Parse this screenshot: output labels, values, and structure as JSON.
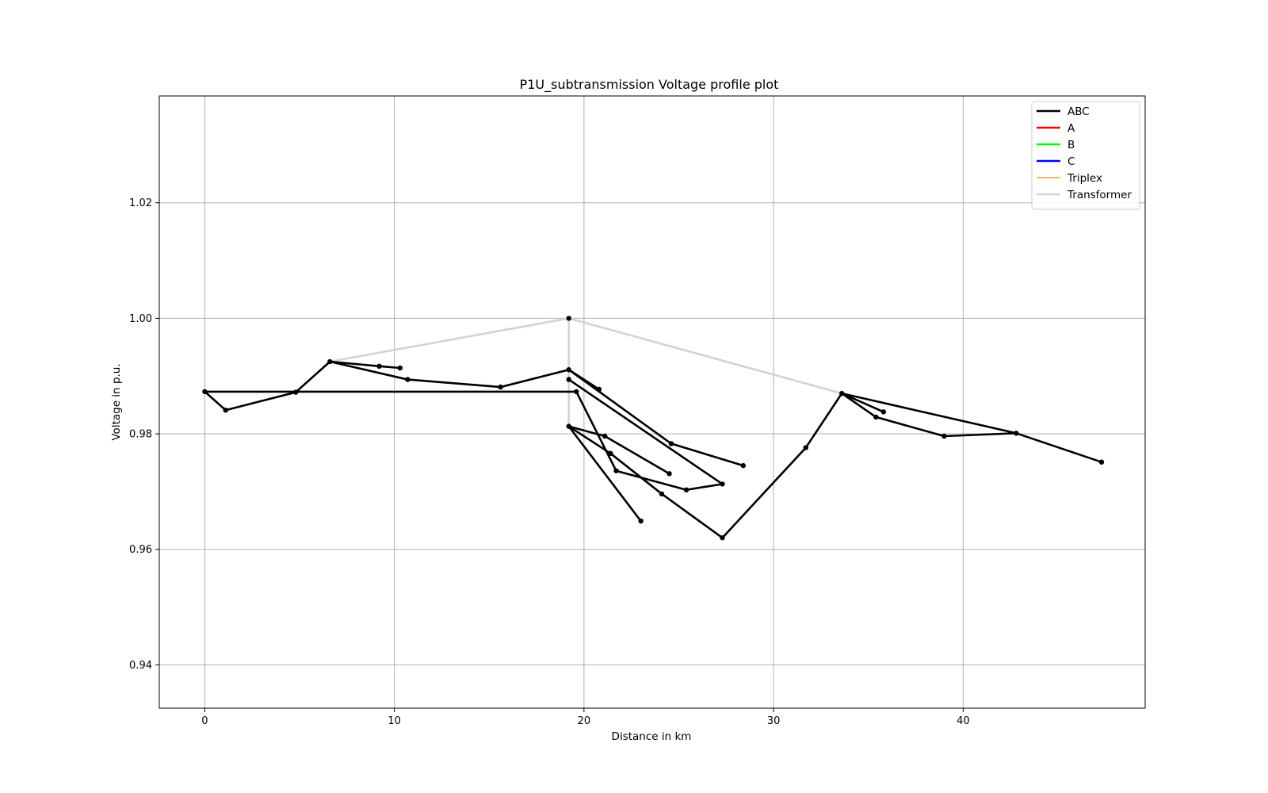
{
  "chart_data": {
    "type": "line",
    "title": "P1U_subtransmission Voltage profile plot",
    "xlabel": "Distance in km",
    "ylabel": "Voltage in p.u.",
    "xlim": [
      -2.4,
      49.6
    ],
    "ylim": [
      0.9325,
      1.0385
    ],
    "xticks": [
      0,
      10,
      20,
      30,
      40
    ],
    "xtick_labels": [
      "0",
      "10",
      "20",
      "30",
      "40"
    ],
    "yticks": [
      0.94,
      0.96,
      0.98,
      1.0,
      1.02
    ],
    "ytick_labels": [
      "0.94",
      "0.96",
      "0.98",
      "1.00",
      "1.02"
    ],
    "grid": true,
    "legend_position": "top-right",
    "legend": [
      {
        "label": "ABC",
        "color": "#000000",
        "width": 2.6
      },
      {
        "label": "A",
        "color": "#ff0000",
        "width": 2.6
      },
      {
        "label": "B",
        "color": "#00ff00",
        "width": 2.6
      },
      {
        "label": "C",
        "color": "#0000ff",
        "width": 2.6
      },
      {
        "label": "Triplex",
        "color": "#f0a030",
        "width": 1.4
      },
      {
        "label": "Transformer",
        "color": "#d3d3d3",
        "width": 2.6
      }
    ],
    "series": [
      {
        "type": "Transformer",
        "points": [
          [
            6.6,
            0.9925
          ],
          [
            19.2,
            1.0
          ]
        ]
      },
      {
        "type": "Transformer",
        "points": [
          [
            19.2,
            1.0
          ],
          [
            33.6,
            0.987
          ]
        ]
      },
      {
        "type": "Transformer",
        "points": [
          [
            19.2,
            1.0
          ],
          [
            19.2,
            0.981
          ]
        ]
      },
      {
        "type": "ABC",
        "points": [
          [
            0,
            0.9873
          ],
          [
            1.1,
            0.9841
          ],
          [
            4.8,
            0.9872
          ],
          [
            6.6,
            0.9925
          ],
          [
            10.7,
            0.9894
          ],
          [
            15.6,
            0.9881
          ],
          [
            19.2,
            0.9911
          ],
          [
            20.8,
            0.9877
          ]
        ]
      },
      {
        "type": "ABC",
        "points": [
          [
            0,
            0.9873
          ],
          [
            19.6,
            0.9873
          ]
        ]
      },
      {
        "type": "ABC",
        "points": [
          [
            6.6,
            0.9925
          ],
          [
            9.2,
            0.9917
          ],
          [
            10.3,
            0.9914
          ]
        ]
      },
      {
        "type": "ABC",
        "points": [
          [
            19.2,
            0.9911
          ],
          [
            24.6,
            0.9783
          ],
          [
            28.4,
            0.9745
          ]
        ]
      },
      {
        "type": "ABC",
        "points": [
          [
            19.2,
            0.9894
          ],
          [
            27.3,
            0.9713
          ]
        ]
      },
      {
        "type": "ABC",
        "points": [
          [
            19.6,
            0.9873
          ],
          [
            21.7,
            0.9736
          ],
          [
            25.4,
            0.9703
          ],
          [
            27.3,
            0.9713
          ]
        ]
      },
      {
        "type": "ABC",
        "points": [
          [
            19.2,
            0.9813
          ],
          [
            21.1,
            0.9796
          ],
          [
            24.5,
            0.9731
          ]
        ]
      },
      {
        "type": "ABC",
        "points": [
          [
            19.2,
            0.9813
          ],
          [
            21.4,
            0.9766
          ],
          [
            24.1,
            0.9696
          ],
          [
            27.3,
            0.962
          ],
          [
            31.7,
            0.9776
          ],
          [
            33.6,
            0.987
          ]
        ]
      },
      {
        "type": "ABC",
        "points": [
          [
            19.2,
            0.9813
          ],
          [
            23.0,
            0.9649
          ]
        ]
      },
      {
        "type": "ABC",
        "points": [
          [
            33.6,
            0.987
          ],
          [
            35.8,
            0.9838
          ]
        ]
      },
      {
        "type": "ABC",
        "points": [
          [
            33.6,
            0.987
          ],
          [
            35.4,
            0.9829
          ],
          [
            39.0,
            0.9796
          ],
          [
            42.8,
            0.9801
          ],
          [
            47.3,
            0.9751
          ]
        ]
      },
      {
        "type": "ABC",
        "points": [
          [
            33.6,
            0.987
          ],
          [
            42.8,
            0.9801
          ]
        ]
      }
    ],
    "markers": [
      [
        0,
        0.9873
      ],
      [
        1.1,
        0.9841
      ],
      [
        4.8,
        0.9872
      ],
      [
        6.6,
        0.9925
      ],
      [
        9.2,
        0.9917
      ],
      [
        10.3,
        0.9914
      ],
      [
        10.7,
        0.9894
      ],
      [
        15.6,
        0.9881
      ],
      [
        19.2,
        1.0
      ],
      [
        19.2,
        0.9911
      ],
      [
        19.2,
        0.9894
      ],
      [
        19.2,
        0.9813
      ],
      [
        19.6,
        0.9873
      ],
      [
        20.8,
        0.9877
      ],
      [
        21.1,
        0.9796
      ],
      [
        21.4,
        0.9766
      ],
      [
        21.7,
        0.9736
      ],
      [
        23.0,
        0.9649
      ],
      [
        24.1,
        0.9696
      ],
      [
        24.5,
        0.9731
      ],
      [
        24.6,
        0.9783
      ],
      [
        25.4,
        0.9703
      ],
      [
        27.3,
        0.9713
      ],
      [
        27.3,
        0.962
      ],
      [
        28.4,
        0.9745
      ],
      [
        31.7,
        0.9776
      ],
      [
        33.6,
        0.987
      ],
      [
        35.4,
        0.9829
      ],
      [
        35.8,
        0.9838
      ],
      [
        39.0,
        0.9796
      ],
      [
        42.8,
        0.9801
      ],
      [
        47.3,
        0.9751
      ]
    ]
  }
}
